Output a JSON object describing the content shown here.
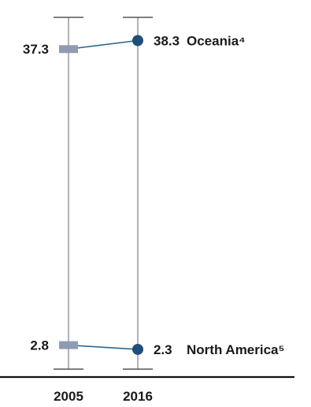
{
  "chart_data": {
    "type": "line",
    "x": [
      "2005",
      "2016"
    ],
    "ylim": [
      0,
      41
    ],
    "grid": false,
    "legend": "none",
    "series": [
      {
        "name": "Oceania⁴",
        "values": [
          37.3,
          38.3
        ],
        "start_label": "37.3",
        "end_label": "38.3"
      },
      {
        "name": "North America⁵",
        "values": [
          2.8,
          2.3
        ],
        "start_label": "2.8",
        "end_label": "2.3"
      }
    ]
  },
  "colors": {
    "start_marker": "#8f9bb3",
    "end_marker": "#1f4e79",
    "connector": "#2b6a8a",
    "axis": "#7f7f7f",
    "baseline": "#111111",
    "text": "#1a1a1a"
  },
  "markers": {
    "start": "square",
    "end": "circle"
  }
}
